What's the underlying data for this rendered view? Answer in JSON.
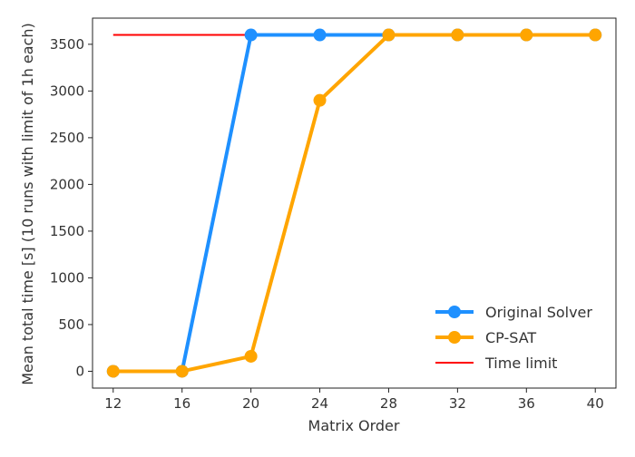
{
  "chart_data": {
    "type": "line",
    "xlabel": "Matrix Order",
    "ylabel": "Mean total time [s] (10 runs with limit of 1h each)",
    "x": [
      12,
      16,
      20,
      24,
      28,
      32,
      36,
      40
    ],
    "xlim": [
      10.8,
      41.2
    ],
    "ylim": [
      -180,
      3780
    ],
    "xticks": [
      12,
      16,
      20,
      24,
      28,
      32,
      36,
      40
    ],
    "yticks": [
      0,
      500,
      1000,
      1500,
      2000,
      2500,
      3000,
      3500
    ],
    "grid": false,
    "legend_position": "lower-right",
    "series": [
      {
        "name": "Original Solver",
        "values": [
          0,
          0,
          3600,
          3600,
          3600,
          3600,
          3600,
          3600
        ],
        "color": "#1e90ff",
        "marker": "circle"
      },
      {
        "name": "CP-SAT",
        "values": [
          0,
          0,
          160,
          2900,
          3600,
          3600,
          3600,
          3600
        ],
        "color": "#ffa500",
        "marker": "circle"
      },
      {
        "name": "Time limit",
        "values": [
          3600,
          3600,
          3600,
          3600,
          3600,
          3600,
          3600,
          3600
        ],
        "color": "#ff0000",
        "marker": "none"
      }
    ]
  }
}
